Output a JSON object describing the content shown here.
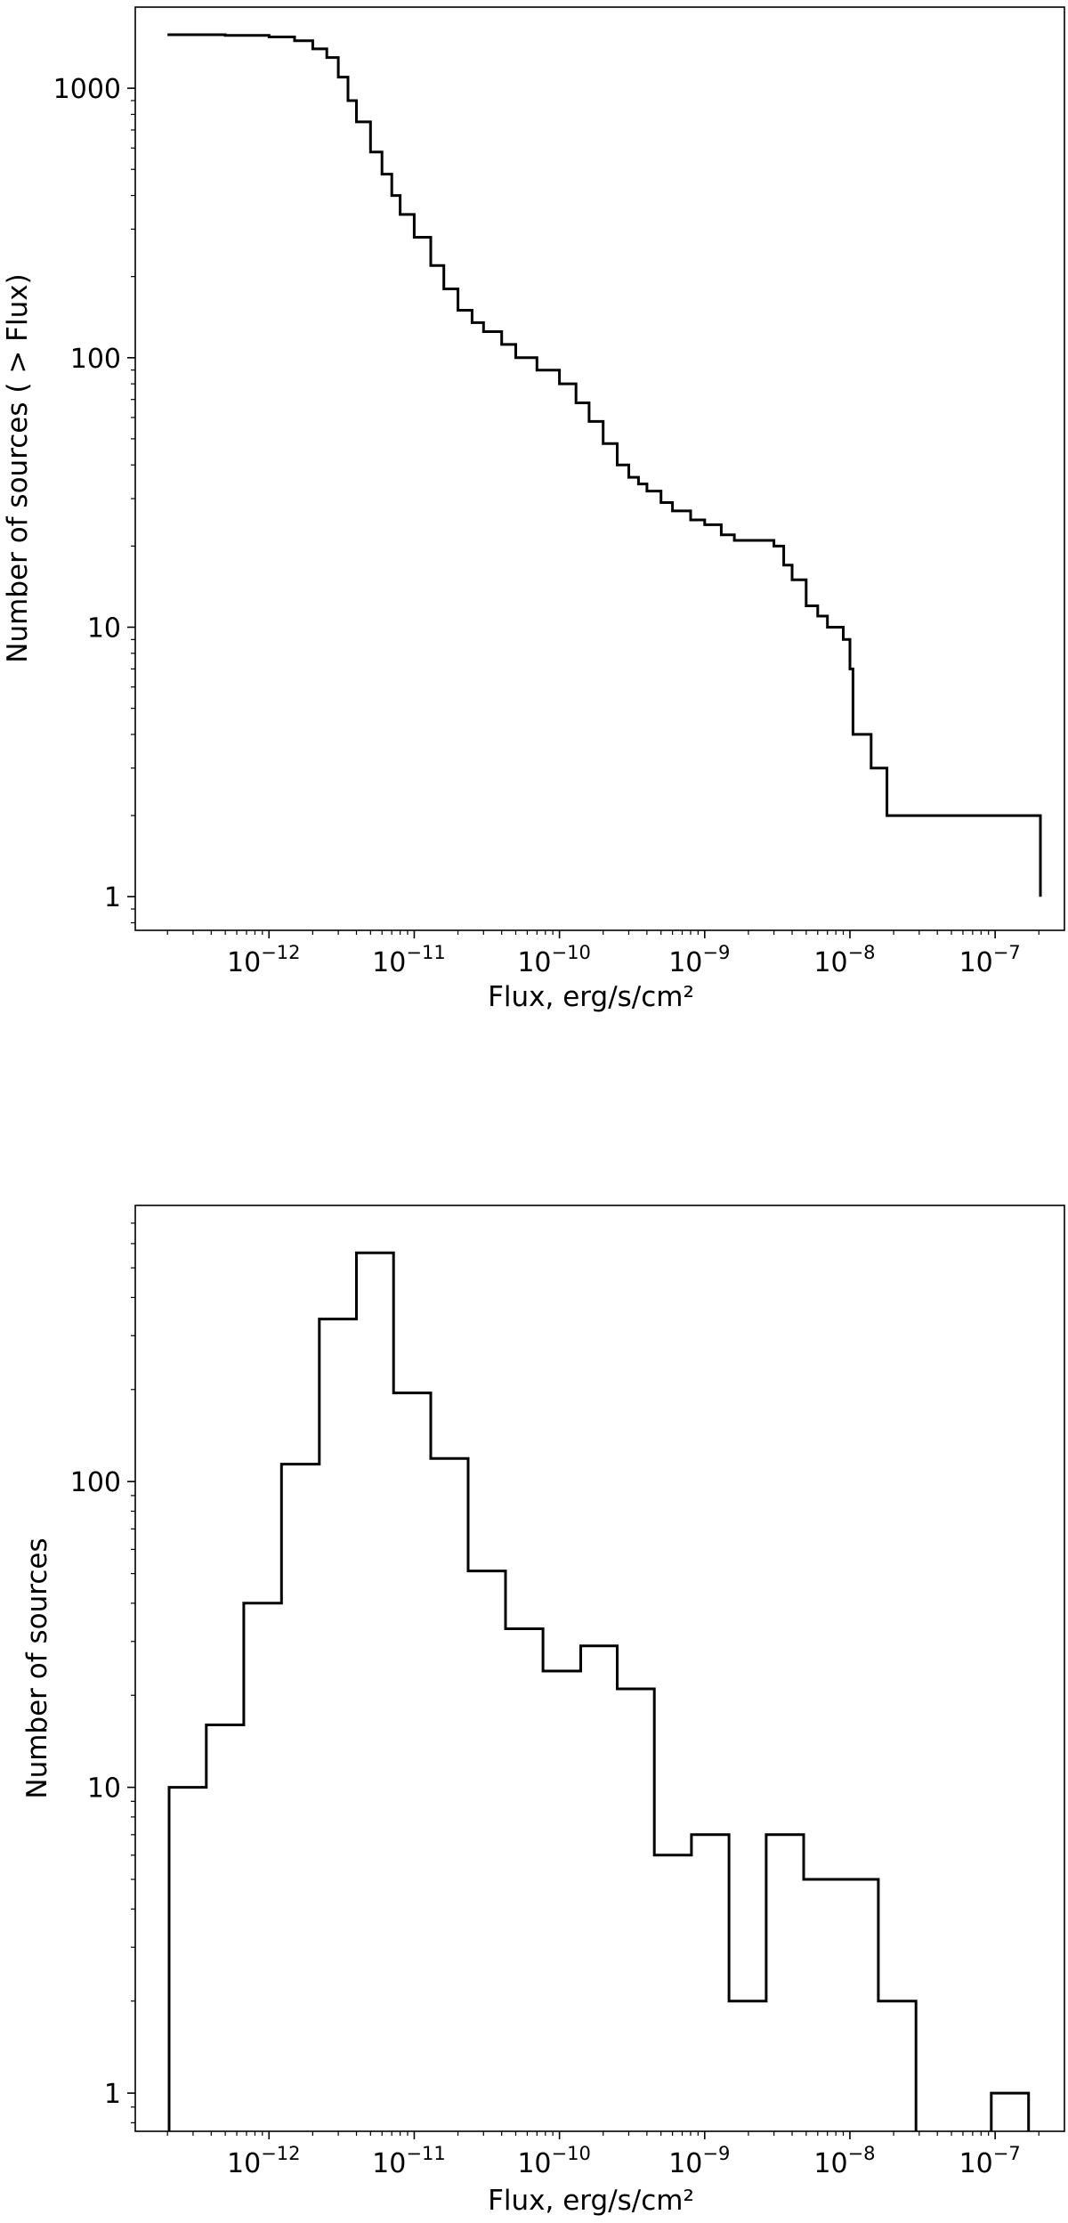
{
  "chart_data": [
    {
      "type": "line",
      "step": true,
      "xscale": "log",
      "yscale": "log",
      "xlabel": "Flux, erg/s/cm²",
      "ylabel": "Number of sources ( > Flux)",
      "xlim": [
        1.2e-13,
        3e-07
      ],
      "ylim": [
        0.75,
        2000
      ],
      "xticks": [
        {
          "value": 1e-12,
          "base": "10",
          "exp": "−12"
        },
        {
          "value": 1e-11,
          "base": "10",
          "exp": "−11"
        },
        {
          "value": 1e-10,
          "base": "10",
          "exp": "−10"
        },
        {
          "value": 1e-09,
          "base": "10",
          "exp": "−9"
        },
        {
          "value": 1e-08,
          "base": "10",
          "exp": "−8"
        },
        {
          "value": 1e-07,
          "base": "10",
          "exp": "−7"
        }
      ],
      "yticks": [
        {
          "value": 1,
          "label": "1"
        },
        {
          "value": 10,
          "label": "10"
        },
        {
          "value": 100,
          "label": "100"
        },
        {
          "value": 1000,
          "label": "1000"
        }
      ],
      "grid": false,
      "series": [
        {
          "x": [
            2e-13,
            5e-13,
            1e-12,
            1.5e-12,
            2e-12,
            2.5e-12,
            3e-12,
            3.5e-12,
            4e-12,
            5e-12,
            6e-12,
            7e-12,
            8e-12,
            1e-11,
            1.3e-11,
            1.6e-11,
            2e-11,
            2.5e-11,
            3e-11,
            4e-11,
            5e-11,
            7e-11,
            1e-10,
            1.3e-10,
            1.6e-10,
            2e-10,
            2.5e-10,
            3e-10,
            3.5e-10,
            4e-10,
            5e-10,
            6e-10,
            8e-10,
            1e-09,
            1.3e-09,
            1.6e-09,
            2e-09,
            2.5e-09,
            3e-09,
            3.5e-09,
            4e-09,
            5e-09,
            6e-09,
            7e-09,
            9e-09,
            1e-08,
            1.05e-08,
            1.4e-08,
            1.8e-08,
            2e-07,
            2.05e-07
          ],
          "y": [
            1580,
            1570,
            1550,
            1500,
            1400,
            1300,
            1100,
            900,
            750,
            580,
            480,
            400,
            340,
            280,
            220,
            180,
            150,
            135,
            125,
            112,
            100,
            90,
            80,
            68,
            58,
            48,
            40,
            36,
            34,
            32,
            29,
            27,
            25,
            24,
            22,
            21,
            21,
            21,
            20,
            17,
            15,
            12,
            11,
            10,
            9,
            7,
            4,
            3,
            2,
            2,
            1
          ]
        }
      ]
    },
    {
      "type": "bar",
      "histogram": true,
      "xscale": "log",
      "yscale": "log",
      "xlabel": "Flux, erg/s/cm²",
      "ylabel": "Number of sources",
      "xlim": [
        1.2e-13,
        3e-07
      ],
      "ylim": [
        0.75,
        800
      ],
      "xticks": [
        {
          "value": 1e-12,
          "base": "10",
          "exp": "−12"
        },
        {
          "value": 1e-11,
          "base": "10",
          "exp": "−11"
        },
        {
          "value": 1e-10,
          "base": "10",
          "exp": "−10"
        },
        {
          "value": 1e-09,
          "base": "10",
          "exp": "−9"
        },
        {
          "value": 1e-08,
          "base": "10",
          "exp": "−8"
        },
        {
          "value": 1e-07,
          "base": "10",
          "exp": "−7"
        }
      ],
      "yticks": [
        {
          "value": 1,
          "label": "1"
        },
        {
          "value": 10,
          "label": "10"
        },
        {
          "value": 100,
          "label": "100"
        }
      ],
      "grid": false,
      "bin_edges": [
        2.05e-13,
        3.7e-13,
        6.7e-13,
        1.22e-12,
        2.22e-12,
        4e-12,
        7.2e-12,
        1.3e-11,
        2.35e-11,
        4.25e-11,
        7.7e-11,
        1.4e-10,
        2.5e-10,
        4.5e-10,
        8.1e-10,
        1.47e-09,
        2.65e-09,
        4.8e-09,
        8.7e-09,
        1.57e-08,
        2.85e-08,
        5.2e-08,
        9.4e-08,
        1.7e-07
      ],
      "counts": [
        10,
        16,
        40,
        114,
        340,
        560,
        195,
        119,
        51,
        33,
        24,
        29,
        21,
        6,
        7,
        2,
        7,
        5,
        5,
        2,
        0,
        0,
        1
      ]
    }
  ]
}
